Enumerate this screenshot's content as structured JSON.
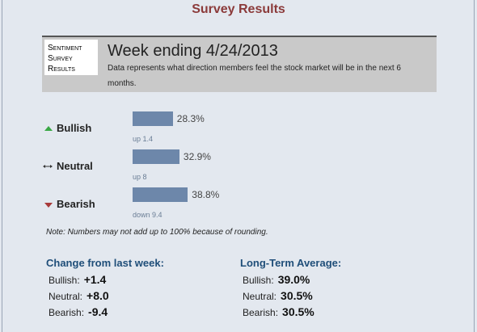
{
  "title": "Survey Results",
  "header": {
    "badge": [
      "Sentiment",
      "Survey",
      "Results"
    ],
    "heading": "Week ending 4/24/2013",
    "description": "Data represents what direction members feel the stock market will be in the next 6 months."
  },
  "sentiment": {
    "rows": [
      {
        "label": "Bullish",
        "value": 28.3,
        "value_label": "28.3%",
        "change": "up 1.4"
      },
      {
        "label": "Neutral",
        "value": 32.9,
        "value_label": "32.9%",
        "change": "up 8"
      },
      {
        "label": "Bearish",
        "value": 38.8,
        "value_label": "38.8%",
        "change": "down 9.4"
      }
    ]
  },
  "note": "Note: Numbers may not add up to 100% because of rounding.",
  "change": {
    "title": "Change from last week:",
    "rows": [
      {
        "label": "Bullish:",
        "value": "+1.4"
      },
      {
        "label": "Neutral:",
        "value": "+8.0"
      },
      {
        "label": "Bearish:",
        "value": "-9.4"
      }
    ]
  },
  "average": {
    "title": "Long-Term Average:",
    "rows": [
      {
        "label": "Bullish:",
        "value": "39.0%"
      },
      {
        "label": "Neutral:",
        "value": "30.5%"
      },
      {
        "label": "Bearish:",
        "value": "30.5%"
      }
    ]
  }
}
